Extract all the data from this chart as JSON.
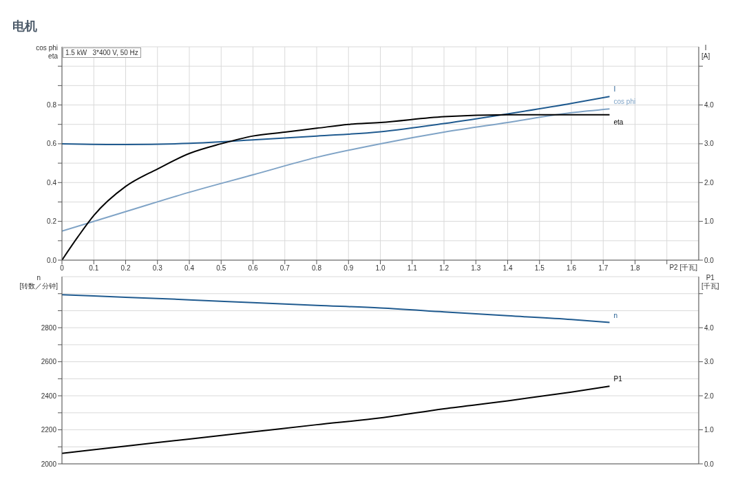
{
  "chart_data": [
    {
      "type": "line",
      "title": "电机",
      "annotations": [
        "1.5 kW   3*400 V, 50 Hz"
      ],
      "xlabel": "P2 [千瓦]",
      "ylabel": "cos phi\neta",
      "y2label": "I\n[A]",
      "xlim": [
        0,
        2.0
      ],
      "xticks": [
        {
          "value": 0,
          "label": "0"
        },
        0.1,
        0.2,
        0.3,
        0.4,
        0.5,
        0.6,
        0.7,
        0.8,
        0.9,
        {
          "value": 1,
          "label": "1.0"
        },
        1.1,
        1.2,
        1.3,
        1.4,
        1.5,
        1.6,
        1.7,
        1.8,
        {
          "value": 1.9,
          "label": null
        }
      ],
      "ylim": [
        0,
        1.1
      ],
      "yticks": [
        {
          "value": 0,
          "label": "0.0"
        },
        {
          "value": 0.1,
          "label": null
        },
        0.2,
        {
          "value": 0.3,
          "label": null
        },
        0.4,
        {
          "value": 0.5,
          "label": null
        },
        0.6,
        {
          "value": 0.7,
          "label": null
        },
        0.8,
        {
          "value": 0.9,
          "label": null
        },
        {
          "value": 1.0,
          "label": null
        }
      ],
      "y2lim": [
        0,
        5.5
      ],
      "y2ticks": [
        {
          "value": 0,
          "label": "0.0"
        },
        {
          "value": 1,
          "label": "1.0"
        },
        {
          "value": 2,
          "label": "2.0"
        },
        {
          "value": 3,
          "label": "3.0"
        },
        {
          "value": 4,
          "label": "4.0"
        },
        {
          "value": 5,
          "label": null
        }
      ],
      "grid": true,
      "series": [
        {
          "name": "I",
          "color": "#1f5a8f",
          "axis": "y2",
          "x": [
            0,
            0.2,
            0.4,
            0.6,
            0.8,
            1.0,
            1.2,
            1.4,
            1.6,
            1.72
          ],
          "values": [
            3.0,
            2.98,
            3.01,
            3.1,
            3.2,
            3.31,
            3.52,
            3.77,
            4.04,
            4.22
          ]
        },
        {
          "name": "cos phi",
          "color": "#7fa3c6",
          "x": [
            0,
            0.2,
            0.4,
            0.6,
            0.8,
            1.0,
            1.2,
            1.4,
            1.6,
            1.72
          ],
          "values": [
            0.15,
            0.25,
            0.35,
            0.44,
            0.53,
            0.6,
            0.66,
            0.71,
            0.76,
            0.78
          ]
        },
        {
          "name": "eta",
          "color": "#000000",
          "x": [
            0,
            0.05,
            0.1,
            0.2,
            0.3,
            0.4,
            0.5,
            0.6,
            0.7,
            0.8,
            0.9,
            1.0,
            1.2,
            1.4,
            1.6,
            1.72
          ],
          "values": [
            0,
            0.12,
            0.23,
            0.38,
            0.47,
            0.55,
            0.6,
            0.64,
            0.66,
            0.68,
            0.7,
            0.71,
            0.74,
            0.75,
            0.75,
            0.75
          ]
        }
      ]
    },
    {
      "type": "line",
      "ylabel": "n\n[转数／分钟]",
      "y2label": "P1\n[千瓦]",
      "tick_labels": "y",
      "xlim": [
        0,
        2.0
      ],
      "xticks": [
        0,
        0.2,
        0.4,
        0.6,
        0.8,
        1.0,
        1.2,
        1.4,
        1.6,
        1.8
      ],
      "ylim": [
        2000,
        3100
      ],
      "yticks": [
        2000,
        {
          "value": 2100,
          "label": null
        },
        2200,
        {
          "value": 2300,
          "label": null
        },
        2400,
        {
          "value": 2500,
          "label": null
        },
        2600,
        {
          "value": 2700,
          "label": null
        },
        2800,
        {
          "value": 2900,
          "label": null
        },
        {
          "value": 3000,
          "label": null
        }
      ],
      "y2lim": [
        0,
        5.5
      ],
      "y2ticks": [
        {
          "value": 0,
          "label": "0.0"
        },
        {
          "value": 1,
          "label": "1.0"
        },
        {
          "value": 2,
          "label": "2.0"
        },
        {
          "value": 3,
          "label": "3.0"
        },
        {
          "value": 4,
          "label": "4.0"
        },
        {
          "value": 5,
          "label": null
        }
      ],
      "grid": true,
      "series": [
        {
          "name": "n",
          "color": "#1f5a8f",
          "x": [
            0,
            0.2,
            0.4,
            0.6,
            0.8,
            1.0,
            1.2,
            1.4,
            1.6,
            1.72
          ],
          "values": [
            2994,
            2979,
            2964,
            2947,
            2931,
            2916,
            2893,
            2870,
            2848,
            2831
          ]
        },
        {
          "name": "P1",
          "color": "#000000",
          "axis": "y2",
          "x": [
            0,
            0.2,
            0.4,
            0.6,
            0.8,
            1.0,
            1.2,
            1.4,
            1.6,
            1.72
          ],
          "values": [
            0.31,
            0.52,
            0.73,
            0.94,
            1.15,
            1.35,
            1.62,
            1.85,
            2.11,
            2.28
          ]
        }
      ]
    }
  ]
}
